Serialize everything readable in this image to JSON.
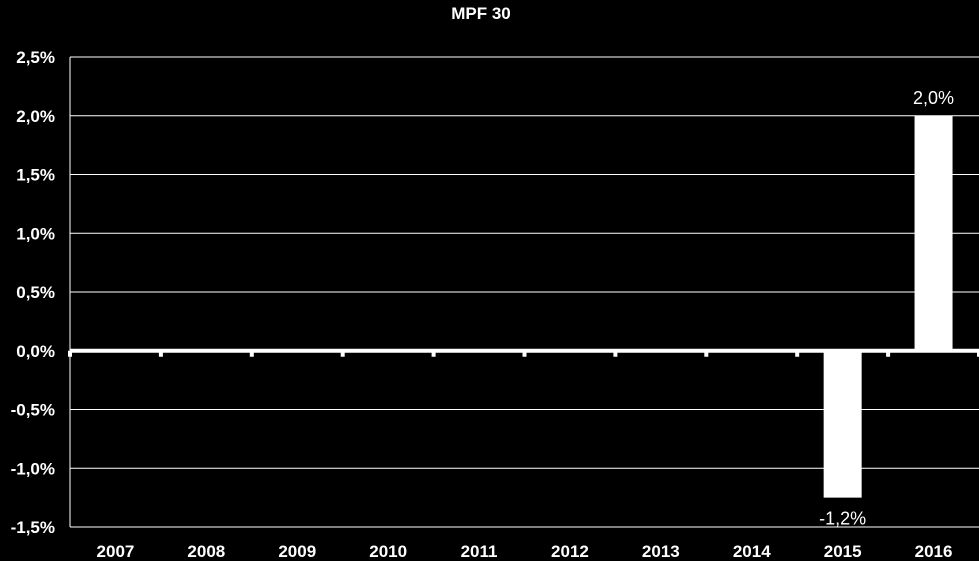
{
  "chart_data": {
    "type": "bar",
    "title": "MPF 30",
    "xlabel": "",
    "ylabel": "",
    "categories": [
      "2007",
      "2008",
      "2009",
      "2010",
      "2011",
      "2012",
      "2013",
      "2014",
      "2015",
      "2016"
    ],
    "values": [
      0.0,
      0.0,
      0.0,
      0.0,
      0.0,
      0.0,
      0.0,
      0.0,
      -1.25,
      2.0
    ],
    "data_labels": [
      "",
      "",
      "",
      "",
      "",
      "",
      "",
      "",
      "-1,2%",
      "2,0%"
    ],
    "ylim": [
      -1.5,
      2.5
    ],
    "yticks": [
      2.5,
      2.0,
      1.5,
      1.0,
      0.5,
      0.0,
      -0.5,
      -1.0,
      -1.5
    ],
    "ytick_labels": [
      "2,5%",
      "2,0%",
      "1,5%",
      "1,0%",
      "0,5%",
      "0,0%",
      "-0,5%",
      "-1,0%",
      "-1,5%"
    ],
    "grid": true,
    "legend": "none",
    "colors": {
      "background": "#000000",
      "bar": "#ffffff",
      "grid": "#ffffff",
      "text": "#ffffff"
    }
  }
}
